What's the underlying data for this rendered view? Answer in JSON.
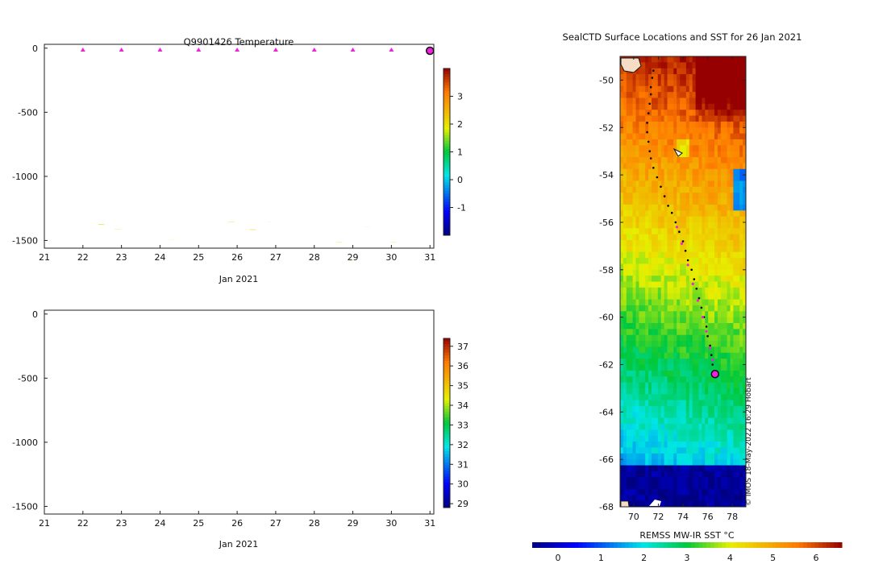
{
  "chart_data": [
    {
      "type": "heatmap",
      "title": "Q9901426  Temperature",
      "variable": "temperature",
      "xlabel": "Jan 2021",
      "x_ticks": [
        "21",
        "22",
        "23",
        "24",
        "25",
        "26",
        "27",
        "28",
        "29",
        "30",
        "31"
      ],
      "xlim": [
        21,
        31.1
      ],
      "y_ticks": [
        "0",
        "-500",
        "-1000",
        "-1500"
      ],
      "ylim": [
        -1560,
        30
      ],
      "colorbar": {
        "ticks": [
          "3",
          "2",
          "1",
          "0",
          "-1"
        ],
        "range": [
          -2.0,
          4.0
        ]
      },
      "profile_markers_days": [
        22,
        23,
        24,
        25,
        26,
        27,
        28,
        29,
        30
      ],
      "current_marker_day": 31
    },
    {
      "type": "heatmap",
      "title": "",
      "variable": "salinity",
      "xlabel": "Jan 2021",
      "x_ticks": [
        "21",
        "22",
        "23",
        "24",
        "25",
        "26",
        "27",
        "28",
        "29",
        "30",
        "31"
      ],
      "xlim": [
        21,
        31.1
      ],
      "y_ticks": [
        "0",
        "-500",
        "-1000",
        "-1500"
      ],
      "ylim": [
        -1560,
        30
      ],
      "colorbar": {
        "ticks": [
          "37",
          "36",
          "35",
          "34",
          "33",
          "32",
          "31",
          "30",
          "29"
        ],
        "range": [
          28.8,
          37.4
        ]
      }
    },
    {
      "type": "heatmap",
      "title": "SealCTD Surface Locations and SST for 26 Jan 2021",
      "x_ticks": [
        "70",
        "72",
        "74",
        "76",
        "78"
      ],
      "xlim": [
        68.9,
        79.1
      ],
      "y_ticks": [
        "-50",
        "-52",
        "-54",
        "-56",
        "-58",
        "-60",
        "-62",
        "-64",
        "-66",
        "-68"
      ],
      "ylim": [
        -68,
        -49
      ],
      "colorbar": {
        "label": "REMSS MW-IR SST °C",
        "ticks": [
          "0",
          "1",
          "2",
          "3",
          "4",
          "5",
          "6"
        ],
        "range": [
          -0.6,
          6.6
        ]
      },
      "track": [
        [
          71.6,
          -49.6
        ],
        [
          71.5,
          -49.9
        ],
        [
          71.4,
          -50.3
        ],
        [
          71.4,
          -50.6
        ],
        [
          71.3,
          -51.0
        ],
        [
          71.2,
          -51.4
        ],
        [
          71.1,
          -51.8
        ],
        [
          71.1,
          -52.2
        ],
        [
          71.2,
          -52.6
        ],
        [
          71.3,
          -53.0
        ],
        [
          71.4,
          -53.3
        ],
        [
          71.6,
          -53.7
        ],
        [
          71.9,
          -54.1
        ],
        [
          72.2,
          -54.5
        ],
        [
          72.5,
          -54.9
        ],
        [
          72.8,
          -55.3
        ],
        [
          73.1,
          -55.6
        ],
        [
          73.4,
          -56.0
        ],
        [
          73.7,
          -56.4
        ],
        [
          74.0,
          -56.8
        ],
        [
          74.2,
          -57.2
        ],
        [
          74.4,
          -57.6
        ],
        [
          74.7,
          -58.0
        ],
        [
          74.9,
          -58.4
        ],
        [
          75.1,
          -58.8
        ],
        [
          75.3,
          -59.2
        ],
        [
          75.5,
          -59.6
        ],
        [
          75.7,
          -60.0
        ],
        [
          75.9,
          -60.4
        ],
        [
          76.0,
          -60.8
        ],
        [
          76.2,
          -61.2
        ],
        [
          76.3,
          -61.6
        ],
        [
          76.4,
          -62.0
        ]
      ],
      "highlight_track": [
        [
          73.5,
          -56.2
        ],
        [
          73.9,
          -56.9
        ],
        [
          74.4,
          -57.8
        ],
        [
          74.8,
          -58.6
        ],
        [
          75.2,
          -59.3
        ],
        [
          75.6,
          -60.0
        ],
        [
          75.9,
          -60.6
        ],
        [
          76.2,
          -61.3
        ],
        [
          76.4,
          -61.8
        ]
      ],
      "current_position": [
        76.6,
        -62.4
      ]
    }
  ],
  "watermark": "© IMOS 18-May-2022 16:29 Hobart"
}
